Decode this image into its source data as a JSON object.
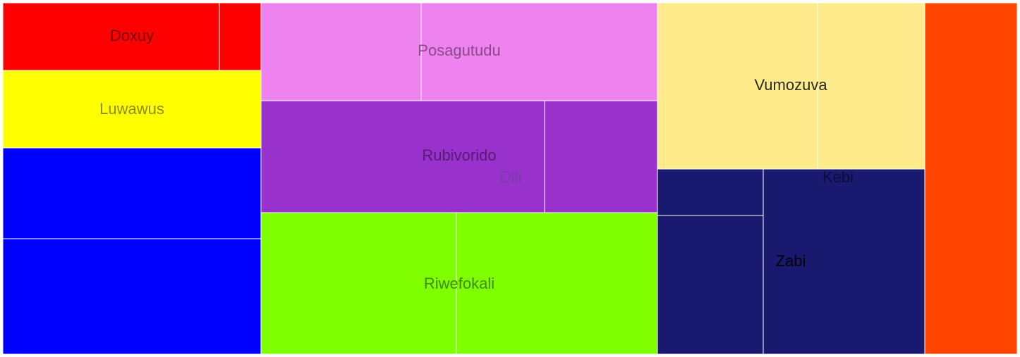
{
  "chart_data": {
    "type": "treemap",
    "groups": [
      {
        "name": "Doxuy",
        "color": "#ff0000",
        "label_color": "#7a0000",
        "children": [
          {
            "value": 61
          },
          {
            "value": 11
          }
        ]
      },
      {
        "name": "Luwawus",
        "color": "#ffff00",
        "label_color": "#8c8c00",
        "children": [
          {
            "value": 82
          }
        ]
      },
      {
        "name": "",
        "color": "#0000ff",
        "label_color": "#00008c",
        "children": [
          {
            "value": 96
          },
          {
            "value": 122
          }
        ]
      },
      {
        "name": "Posagutudu",
        "color": "#ee82ee",
        "label_color": "#8a4a8a",
        "children": [
          {
            "value": 64
          },
          {
            "value": 96
          }
        ]
      },
      {
        "name": "Rubivorido",
        "color": "#9932cc",
        "label_color": "#551c72",
        "children": [
          {
            "value": 128
          },
          {
            "value": 51
          }
        ]
      },
      {
        "name": "Dili",
        "color": "#9932cc",
        "label_color": "#7a3ca8",
        "children": []
      },
      {
        "name": "Riwefokali",
        "color": "#7fff00",
        "label_color": "#3f8c00",
        "children": [
          {
            "value": 111
          },
          {
            "value": 114
          }
        ]
      },
      {
        "name": "Vumozuva",
        "color": "#ffeb8b",
        "label_color": "#2a2a1a",
        "children": [
          {
            "value": 109
          },
          {
            "value": 69
          }
        ]
      },
      {
        "name": "Kebi",
        "color": "#191970",
        "label_color": "#0c0c3a",
        "children": []
      },
      {
        "name": "Zabi",
        "color": "#191970",
        "label_color": "#000000",
        "children": [
          {
            "value": 22
          },
          {
            "value": 40
          },
          {
            "value": 147
          }
        ]
      },
      {
        "name": "",
        "color": "#ff4500",
        "label_color": "#7a2000",
        "children": [
          {
            "value": 170
          }
        ]
      }
    ]
  }
}
